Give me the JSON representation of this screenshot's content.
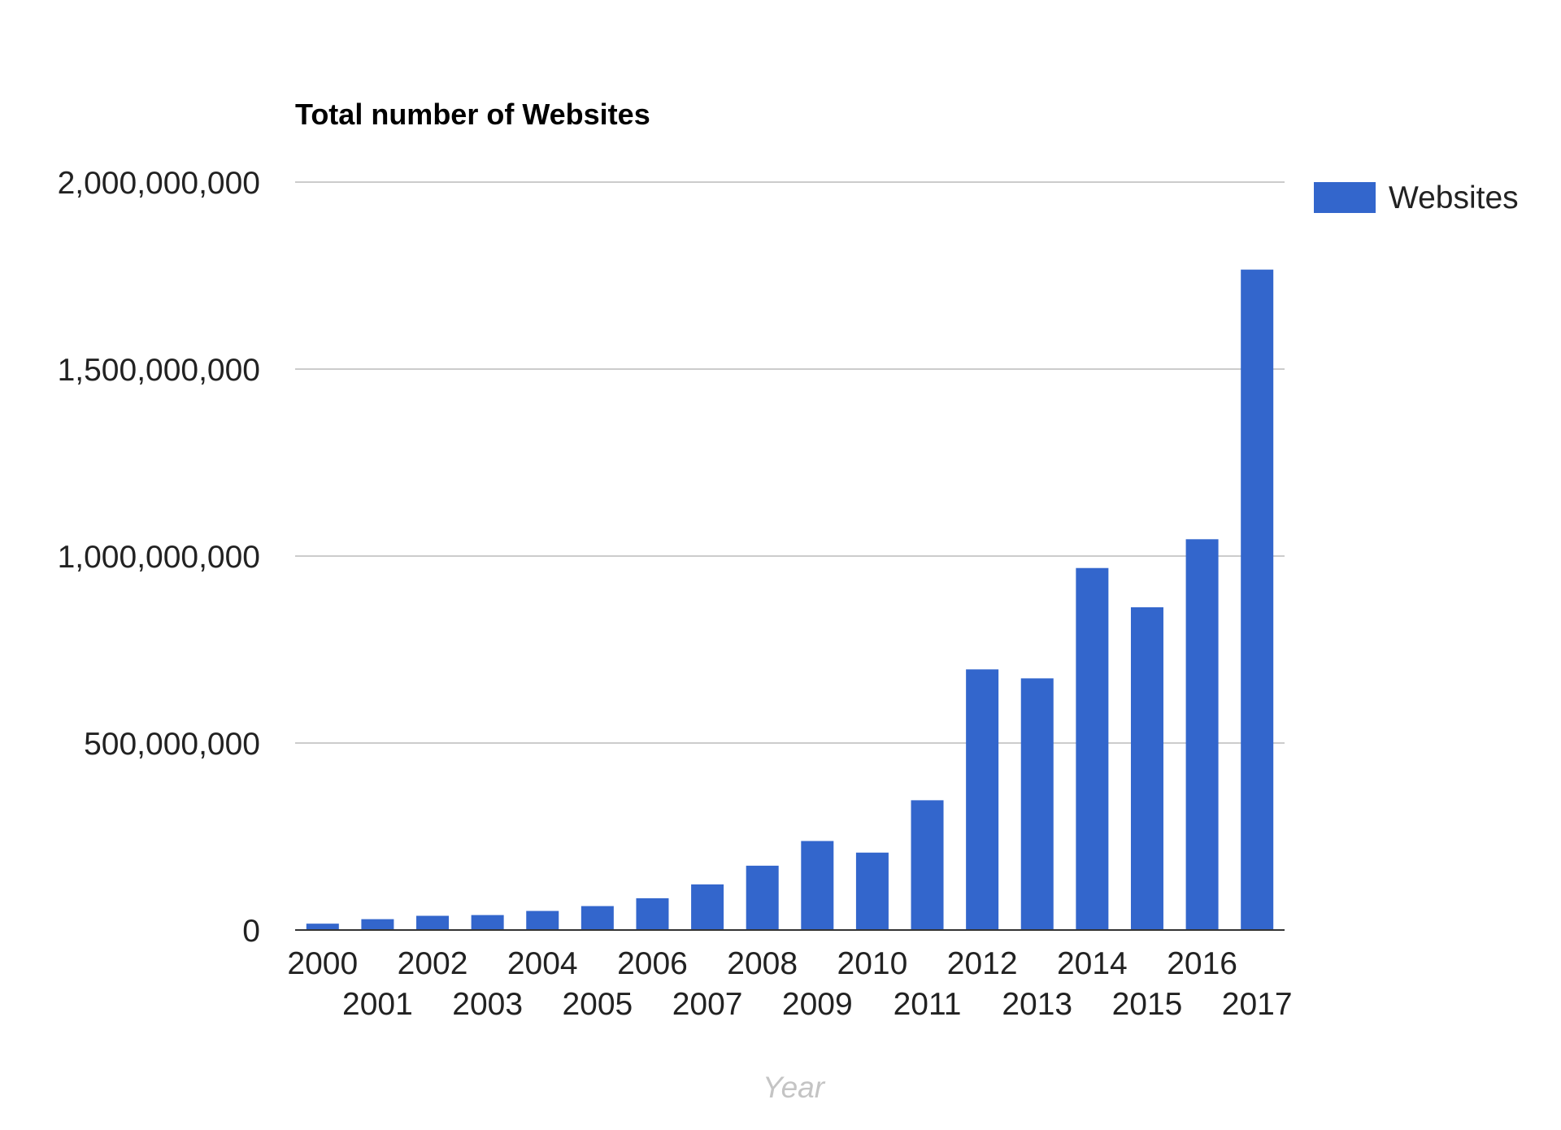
{
  "chart_data": {
    "type": "bar",
    "title": "Total number of Websites",
    "xlabel": "Year",
    "ylabel": "",
    "categories": [
      "2000",
      "2001",
      "2002",
      "2003",
      "2004",
      "2005",
      "2006",
      "2007",
      "2008",
      "2009",
      "2010",
      "2011",
      "2012",
      "2013",
      "2014",
      "2015",
      "2016",
      "2017"
    ],
    "series": [
      {
        "name": "Websites",
        "color": "#3366cc",
        "values": [
          17000000,
          29000000,
          38000000,
          40000000,
          51000000,
          64000000,
          85000000,
          122000000,
          172000000,
          238000000,
          207000000,
          347000000,
          697000000,
          673000000,
          968000000,
          863000000,
          1045000000,
          1766000000
        ]
      }
    ],
    "ylim": [
      0,
      2000000000
    ],
    "yticks": [
      0,
      500000000,
      1000000000,
      1500000000,
      2000000000
    ],
    "ytick_labels": [
      "0",
      "500,000,000",
      "1,000,000,000",
      "1,500,000,000",
      "2,000,000,000"
    ],
    "grid": true,
    "legend_position": "right"
  }
}
